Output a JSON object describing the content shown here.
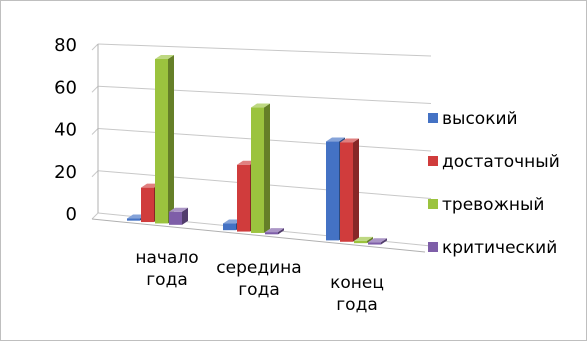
{
  "chart_data": {
    "type": "bar",
    "categories": [
      "начало года",
      "середина года",
      "конец года"
    ],
    "series": [
      {
        "name": "высокий",
        "color": "#4472c4",
        "values": [
          1,
          3,
          43
        ]
      },
      {
        "name": "достаточный",
        "color": "#d03c3c",
        "values": [
          16,
          30,
          43
        ]
      },
      {
        "name": "тревожный",
        "color": "#9bc33e",
        "values": [
          76,
          56,
          1
        ]
      },
      {
        "name": "критический",
        "color": "#7e5ea8",
        "values": [
          6,
          1,
          1
        ]
      }
    ],
    "title": "",
    "xlabel": "",
    "ylabel": "",
    "ylim": [
      0,
      80
    ],
    "yticks": [
      0,
      20,
      40,
      60,
      80
    ],
    "grid": true,
    "legend_position": "right",
    "three_d": true
  }
}
